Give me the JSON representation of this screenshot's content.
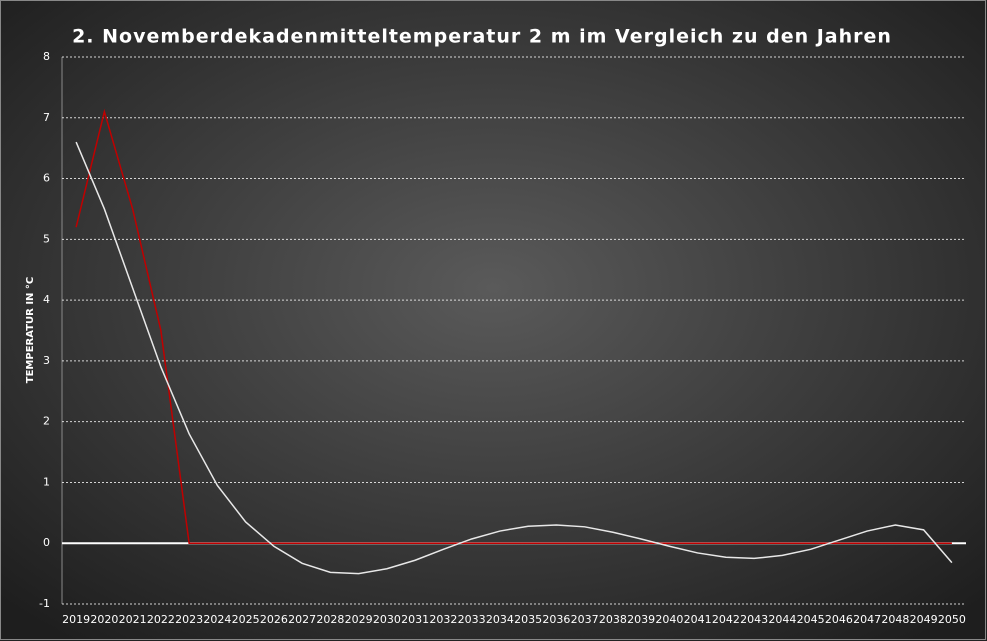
{
  "chart_data": {
    "type": "line",
    "title": "2. Novemberdekadenmitteltemperatur  2 m im Vergleich zu den Jahren",
    "y_label": "TEMPERATUR IN °C",
    "categories": [
      "2019",
      "2020",
      "2021",
      "2022",
      "2023",
      "2024",
      "2025",
      "2026",
      "2027",
      "2028",
      "2029",
      "2030",
      "2031",
      "2032",
      "2033",
      "2034",
      "2035",
      "2036",
      "2037",
      "2038",
      "2039",
      "2040",
      "2041",
      "2042",
      "2043",
      "2044",
      "2045",
      "2046",
      "2047",
      "2048",
      "2049",
      "2050"
    ],
    "series": [
      {
        "color": "#c00000",
        "values": [
          5.2,
          7.1,
          5.5,
          3.5,
          0,
          0,
          0,
          0,
          0,
          0,
          0,
          0,
          0,
          0,
          0,
          0,
          0,
          0,
          0,
          0,
          0,
          0,
          0,
          0,
          0,
          0,
          0,
          0,
          0,
          0,
          0,
          0
        ]
      },
      {
        "color": "#e8e8e8",
        "values": [
          6.6,
          5.5,
          4.2,
          2.9,
          1.8,
          0.95,
          0.35,
          -0.05,
          -0.33,
          -0.48,
          -0.5,
          -0.42,
          -0.28,
          -0.1,
          0.07,
          0.2,
          0.28,
          0.3,
          0.27,
          0.18,
          0.07,
          -0.05,
          -0.16,
          -0.23,
          -0.25,
          -0.2,
          -0.1,
          0.05,
          0.2,
          0.3,
          0.22,
          -0.32
        ]
      }
    ],
    "ylim": [
      -1,
      8
    ],
    "yticks": [
      -1,
      0,
      1,
      2,
      3,
      4,
      5,
      6,
      7,
      8
    ],
    "grid": true
  }
}
